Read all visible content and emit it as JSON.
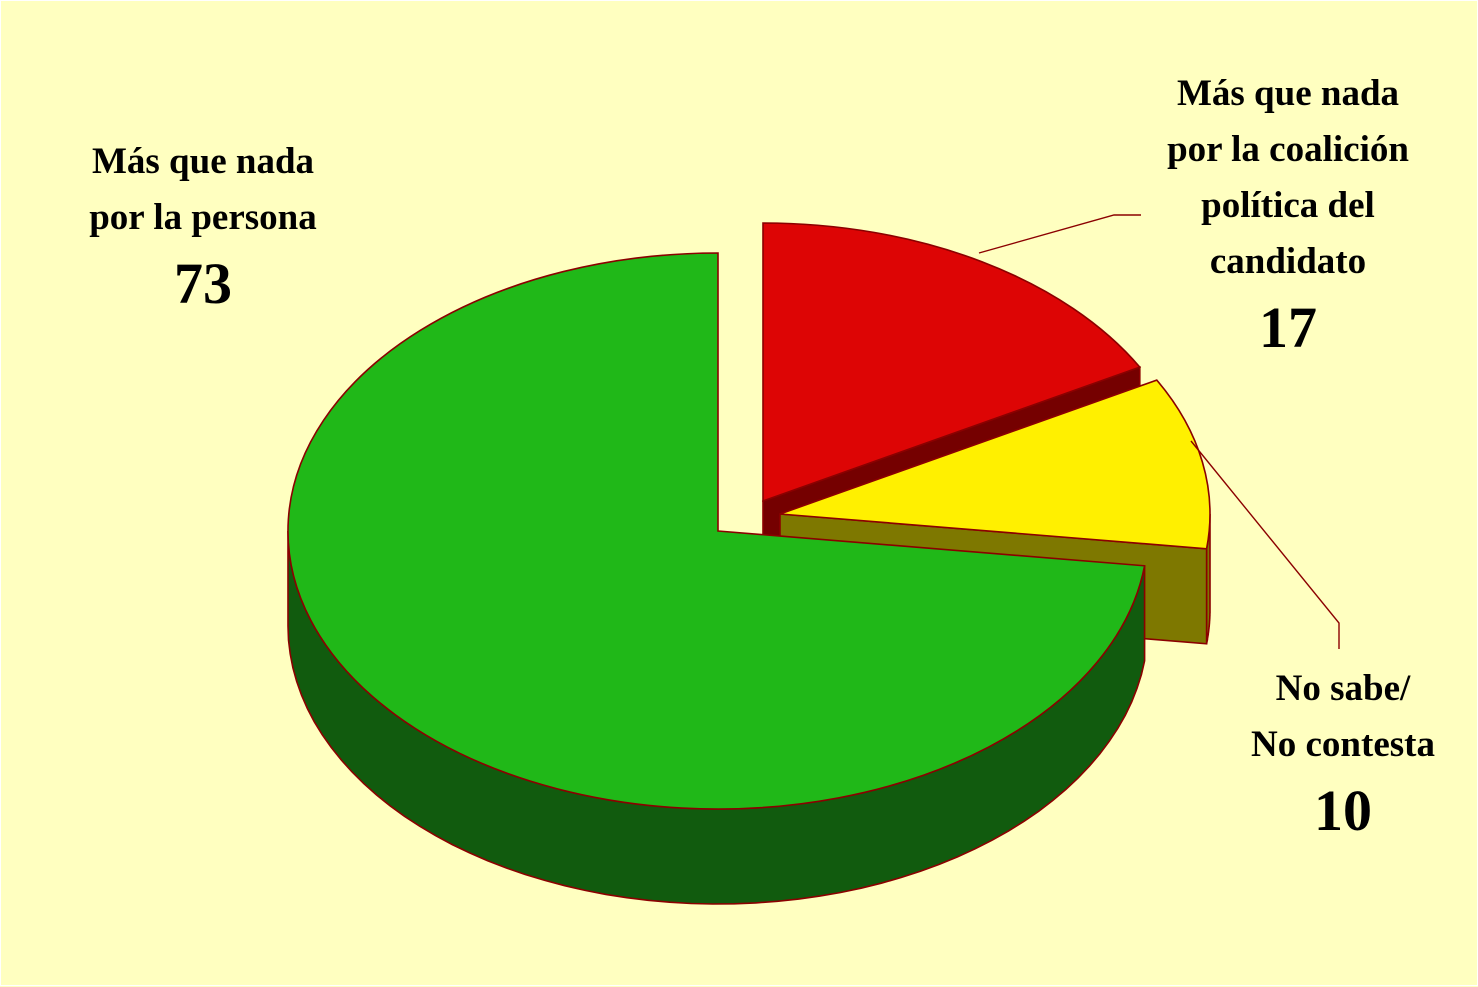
{
  "chart_data": {
    "type": "pie",
    "three_d": true,
    "exploded": true,
    "title": "",
    "slices": [
      {
        "label_lines": [
          "Más que nada",
          "por la persona"
        ],
        "value": 73,
        "value_label": "73",
        "color": "#20b818",
        "side_color": "#115b0e"
      },
      {
        "label_lines": [
          "Más que nada",
          "por la coalición",
          "política del",
          "candidato"
        ],
        "value": 17,
        "value_label": "17",
        "color": "#dd0505",
        "side_color": "#750000"
      },
      {
        "label_lines": [
          "No sabe/",
          "No contesta"
        ],
        "value": 10,
        "value_label": "10",
        "color": "#fff000",
        "side_color": "#7e7800"
      }
    ],
    "outline_color": "#8b0000",
    "background_color": "#ffffc0"
  }
}
